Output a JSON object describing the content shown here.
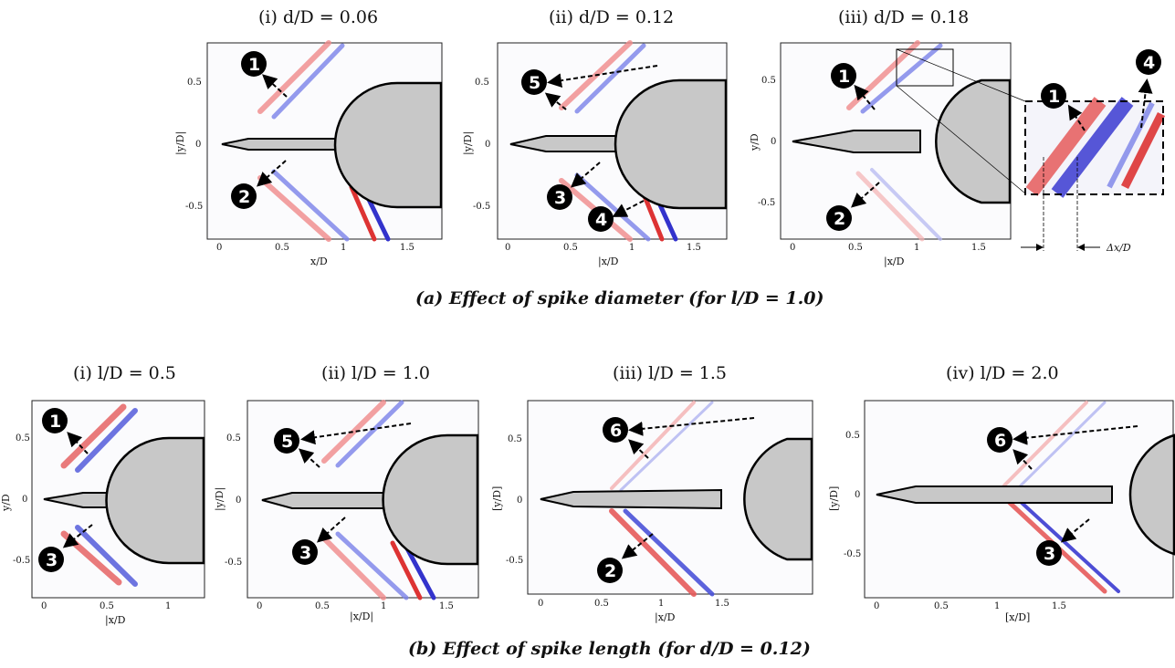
{
  "section_a": {
    "caption": "(a) Effect of spike diameter (for l/D = 1.0)",
    "panels": [
      {
        "title": "(i) d/D = 0.06",
        "xlabel": "x/D",
        "ylabel": "|y/D|",
        "xticks": [
          "0",
          "0.5",
          "1",
          "1.5"
        ],
        "yticks": [
          "0.5",
          "0",
          "-0.5"
        ],
        "markers": [
          "1",
          "2"
        ]
      },
      {
        "title": "(ii) d/D = 0.12",
        "xlabel": "|x/D",
        "ylabel": "|y/D|",
        "xticks": [
          "0",
          "0.5",
          "1",
          "1.5"
        ],
        "yticks": [
          "0.5",
          "0",
          "-0.5"
        ],
        "markers": [
          "5",
          "3",
          "4"
        ]
      },
      {
        "title": "(iii) d/D = 0.18",
        "xlabel": "|x/D",
        "ylabel": "y/D",
        "xticks": [
          "0",
          "0.5",
          "1",
          "1.5"
        ],
        "yticks": [
          "0.5",
          "0",
          "-0.5"
        ],
        "markers": [
          "1",
          "2"
        ]
      }
    ],
    "inset": {
      "markers": [
        "1",
        "4"
      ],
      "delta_label": "Δx/D"
    }
  },
  "section_b": {
    "caption": "(b) Effect of spike length (for d/D = 0.12)",
    "panels": [
      {
        "title": "(i) l/D = 0.5",
        "xlabel": "|x/D",
        "ylabel": "y/D",
        "xticks": [
          "0",
          "0.5",
          "1"
        ],
        "yticks": [
          "0.5",
          "0",
          "-0.5"
        ],
        "markers": [
          "1",
          "3"
        ]
      },
      {
        "title": "(ii) l/D = 1.0",
        "xlabel": "|x/D|",
        "ylabel": "|y/D|",
        "xticks": [
          "0",
          "0.5",
          "1",
          "1.5"
        ],
        "yticks": [
          "0.5",
          "0",
          "-0.5"
        ],
        "markers": [
          "5",
          "3"
        ]
      },
      {
        "title": "(iii) l/D = 1.5",
        "xlabel": "|x/D",
        "ylabel": "[y/D]",
        "xticks": [
          "0",
          "0.5",
          "1",
          "1.5"
        ],
        "yticks": [
          "0.5",
          "0",
          "-0.5"
        ],
        "markers": [
          "6",
          "2"
        ]
      },
      {
        "title": "(iv) l/D = 2.0",
        "xlabel": "[x/D]",
        "ylabel": "[y/D]",
        "xticks": [
          "0",
          "0.5",
          "1",
          "1.5"
        ],
        "yticks": [
          "0.5",
          "0",
          "-0.5"
        ],
        "markers": [
          "6",
          "3"
        ]
      }
    ]
  }
}
